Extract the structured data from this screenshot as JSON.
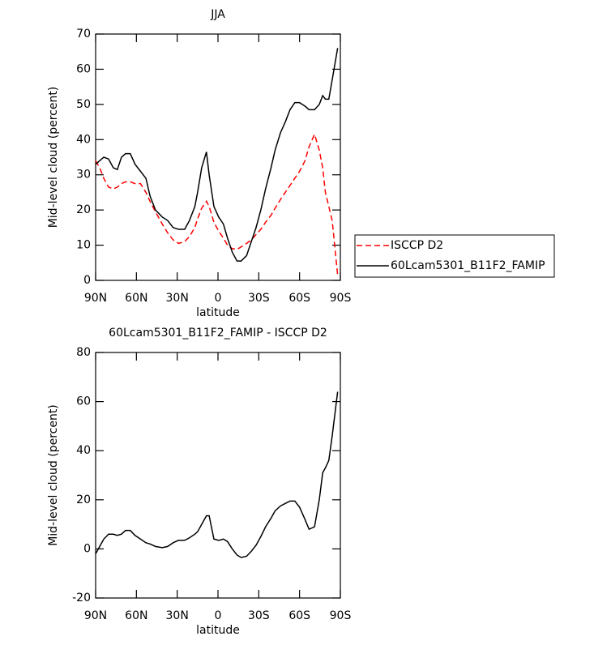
{
  "chart_data": [
    {
      "type": "line",
      "title": "JJA",
      "xlabel": "latitude",
      "ylabel": "Mid-level cloud (percent)",
      "x": [
        90,
        87,
        84,
        80.5,
        77,
        74,
        71,
        68,
        64.5,
        61,
        57,
        53,
        50,
        46,
        41,
        37,
        33,
        29,
        24.5,
        21,
        17,
        15,
        12,
        8.5,
        6.5,
        3,
        -0.5,
        -4,
        -7,
        -10.5,
        -14,
        -17,
        -21,
        -24.5,
        -28,
        -31.5,
        -35,
        -39,
        -42,
        -46,
        -49.5,
        -53,
        -56.5,
        -60,
        -64,
        -67,
        -71,
        -74.5,
        -77,
        -79,
        -81.5,
        -84,
        -88
      ],
      "series": [
        {
          "name": "ISCCP D2",
          "color": "#ff0000",
          "line_style": "dashed",
          "values": [
            34,
            32,
            29,
            26.5,
            26,
            26.5,
            27.5,
            28,
            28,
            27.5,
            27.5,
            25,
            22.5,
            19.5,
            16,
            13.5,
            11.5,
            10.5,
            11,
            12.5,
            15,
            17.5,
            20.5,
            22.5,
            21,
            16.5,
            14,
            12,
            10,
            9,
            8.8,
            9.5,
            10.5,
            11.5,
            13,
            14.5,
            16.5,
            18.5,
            20.5,
            23,
            25,
            27,
            29,
            31,
            34,
            38,
            41.5,
            37,
            32,
            25,
            21,
            17,
            1.5
          ]
        },
        {
          "name": "60Lcam5301_B11F2_FAMIP",
          "color": "#000000",
          "line_style": "solid",
          "values": [
            33,
            34,
            35,
            34.5,
            32,
            31.5,
            35,
            36,
            36,
            33,
            31,
            29,
            24,
            20,
            18,
            17,
            15,
            14.5,
            14.5,
            17,
            21,
            25,
            32,
            36.5,
            30,
            21,
            18,
            16,
            12,
            8,
            5.5,
            5.5,
            7,
            11,
            15,
            20,
            26,
            32,
            37,
            42,
            45,
            48.5,
            50.5,
            50.5,
            49.5,
            48.5,
            48.5,
            50,
            52.5,
            51.5,
            51.5,
            57,
            66
          ]
        }
      ],
      "xlim": [
        90,
        -90
      ],
      "xticks": [
        {
          "value": 90,
          "label": "90N"
        },
        {
          "value": 60,
          "label": "60N"
        },
        {
          "value": 30,
          "label": "30N"
        },
        0,
        {
          "value": -30,
          "label": "30S"
        },
        {
          "value": -60,
          "label": "60S"
        },
        {
          "value": -90,
          "label": "90S"
        }
      ],
      "ylim": [
        0,
        70
      ],
      "yticks": [
        0,
        10,
        20,
        30,
        40,
        50,
        60,
        70
      ],
      "legend": "right"
    },
    {
      "type": "line",
      "title": "60Lcam5301_B11F2_FAMIP - ISCCP D2",
      "xlabel": "latitude",
      "ylabel": "Mid-level cloud (percent)",
      "x": [
        90,
        87,
        84,
        80.5,
        77,
        74,
        71,
        68,
        64.5,
        61,
        57,
        53,
        50,
        46,
        41,
        37,
        33,
        29,
        24.5,
        21,
        17,
        15,
        12,
        8.5,
        6.5,
        3,
        -0.5,
        -4,
        -7,
        -10.5,
        -14,
        -17,
        -21,
        -24.5,
        -28,
        -31.5,
        -35,
        -39,
        -42,
        -46,
        -49.5,
        -53,
        -56.5,
        -60,
        -64,
        -67,
        -71,
        -74.5,
        -77,
        -79,
        -81.5,
        -84,
        -88
      ],
      "series": [
        {
          "color": "#000000",
          "line_style": "solid",
          "values": [
            -2,
            1,
            4,
            6,
            6,
            5.5,
            6,
            7.5,
            7.5,
            5.5,
            4,
            2.5,
            2,
            1,
            0.5,
            1,
            2.5,
            3.5,
            3.5,
            4.5,
            6,
            7,
            10,
            13.5,
            13.5,
            4,
            3.5,
            4,
            3,
            0,
            -2.5,
            -3.5,
            -3,
            -1,
            1.5,
            5,
            9,
            12.5,
            15.5,
            17.5,
            18.5,
            19.5,
            19.5,
            17,
            12,
            8,
            9,
            20,
            31,
            33,
            36,
            46,
            64
          ]
        }
      ],
      "xlim": [
        90,
        -90
      ],
      "xticks": [
        {
          "value": 90,
          "label": "90N"
        },
        {
          "value": 60,
          "label": "60N"
        },
        {
          "value": 30,
          "label": "30N"
        },
        0,
        {
          "value": -30,
          "label": "30S"
        },
        {
          "value": -60,
          "label": "60S"
        },
        {
          "value": -90,
          "label": "90S"
        }
      ],
      "ylim": [
        -20,
        80
      ],
      "yticks": [
        -20,
        0,
        20,
        40,
        60,
        80
      ]
    }
  ]
}
